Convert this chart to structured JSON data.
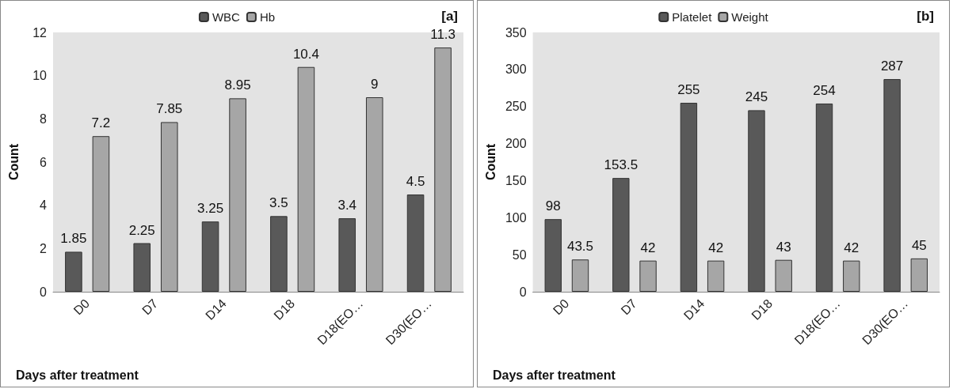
{
  "chart_data": [
    {
      "type": "bar",
      "categories": [
        "D0",
        "D7",
        "D14",
        "D18",
        "D18(EO…",
        "D30(EO…"
      ],
      "xlabel": "Days after treatment",
      "ylabel": "Count",
      "annotations": [
        "[a]"
      ],
      "ylim": [
        0,
        12
      ],
      "yticks": [
        0,
        2,
        4,
        6,
        8,
        10,
        12
      ],
      "legend": "top",
      "data_labels": true,
      "series": [
        {
          "name": "WBC",
          "color": "#595959",
          "values": [
            1.85,
            2.25,
            3.25,
            3.5,
            3.4,
            4.5
          ]
        },
        {
          "name": "Hb",
          "color": "#a6a6a6",
          "values": [
            7.2,
            7.85,
            8.95,
            10.4,
            9,
            11.3
          ]
        }
      ]
    },
    {
      "type": "bar",
      "categories": [
        "D0",
        "D7",
        "D14",
        "D18",
        "D18(EO…",
        "D30(EO…"
      ],
      "xlabel": "Days after treatment",
      "ylabel": "Count",
      "annotations": [
        "[b]"
      ],
      "ylim": [
        0,
        350
      ],
      "yticks": [
        0,
        50,
        100,
        150,
        200,
        250,
        300,
        350
      ],
      "legend": "top",
      "data_labels": true,
      "series": [
        {
          "name": "Platelet",
          "color": "#595959",
          "values": [
            98,
            153.5,
            255,
            245,
            254,
            287
          ]
        },
        {
          "name": "Weight",
          "color": "#a6a6a6",
          "values": [
            43.5,
            42,
            42,
            43,
            42,
            45
          ]
        }
      ]
    }
  ]
}
